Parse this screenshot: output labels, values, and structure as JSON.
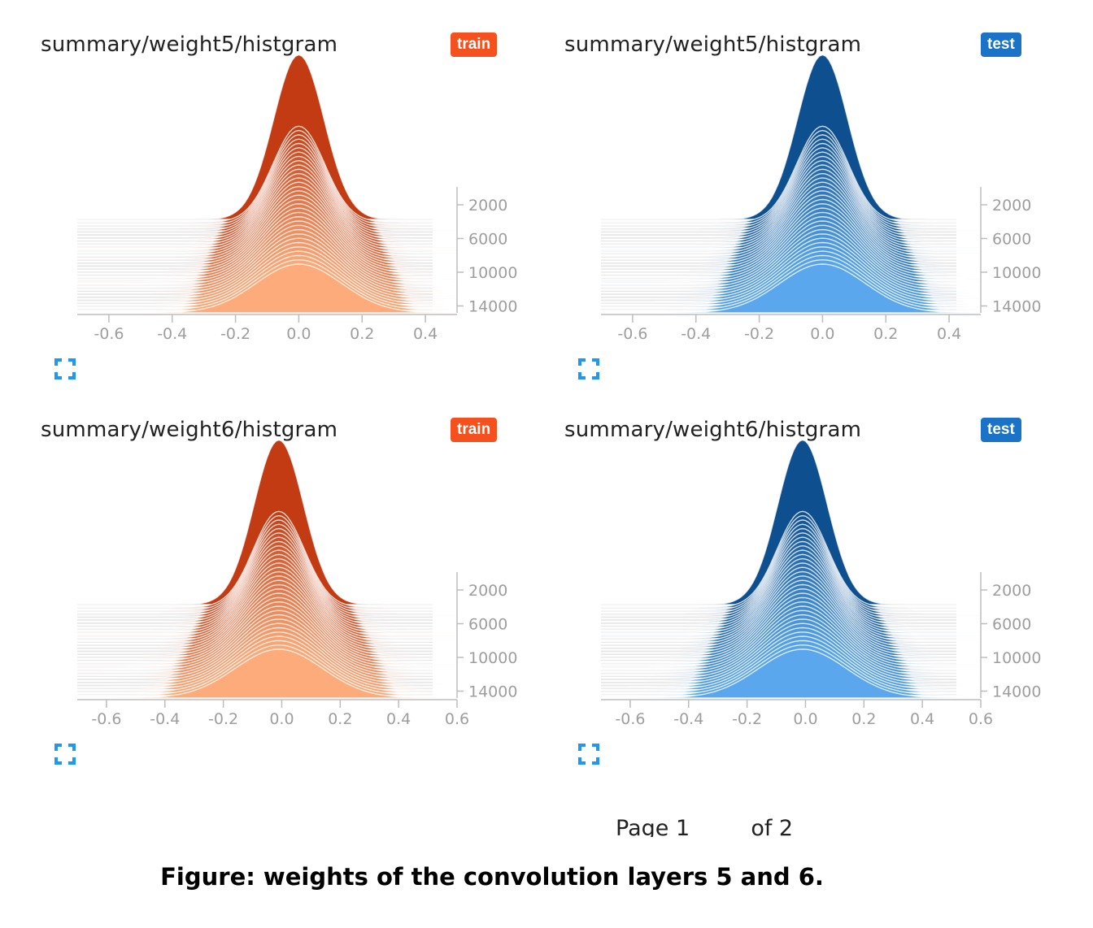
{
  "panels": [
    {
      "title": "summary/weight5/histgram",
      "run": "train",
      "color": "#f4511e",
      "dark": "#c23b12",
      "light": "#fdab7a",
      "x_ticks": [
        "-0.6",
        "-0.4",
        "-0.2",
        "0.0",
        "0.2",
        "0.4"
      ],
      "x_range": [
        -0.7,
        0.5
      ],
      "y_ticks": [
        "2000",
        "6000",
        "10000",
        "14000"
      ],
      "spread": [
        0.08,
        0.135
      ],
      "peak_center": 0.0
    },
    {
      "title": "summary/weight5/histgram",
      "run": "test",
      "color": "#1a73c6",
      "dark": "#0d4f8f",
      "light": "#5aa7ee",
      "x_ticks": [
        "-0.6",
        "-0.4",
        "-0.2",
        "0.0",
        "0.2",
        "0.4"
      ],
      "x_range": [
        -0.7,
        0.5
      ],
      "y_ticks": [
        "2000",
        "6000",
        "10000",
        "14000"
      ],
      "spread": [
        0.08,
        0.135
      ],
      "peak_center": 0.0
    },
    {
      "title": "summary/weight6/histgram",
      "run": "train",
      "color": "#f4511e",
      "dark": "#c23b12",
      "light": "#fdab7a",
      "x_ticks": [
        "-0.6",
        "-0.4",
        "-0.2",
        "0.0",
        "0.2",
        "0.4",
        "0.6"
      ],
      "x_range": [
        -0.7,
        0.6
      ],
      "y_ticks": [
        "2000",
        "6000",
        "10000",
        "14000"
      ],
      "spread": [
        0.085,
        0.15
      ],
      "peak_center": -0.01
    },
    {
      "title": "summary/weight6/histgram",
      "run": "test",
      "color": "#1a73c6",
      "dark": "#0d4f8f",
      "light": "#5aa7ee",
      "x_ticks": [
        "-0.6",
        "-0.4",
        "-0.2",
        "0.0",
        "0.2",
        "0.4",
        "0.6"
      ],
      "x_range": [
        -0.7,
        0.6
      ],
      "y_ticks": [
        "2000",
        "6000",
        "10000",
        "14000"
      ],
      "spread": [
        0.085,
        0.15
      ],
      "peak_center": -0.01
    }
  ],
  "pager": {
    "page_label": "Page 1",
    "of_label": "of 2"
  },
  "caption": "Figure: weights of the convolution layers 5 and 6.",
  "icons": {
    "expand": "fullscreen-icon"
  }
}
